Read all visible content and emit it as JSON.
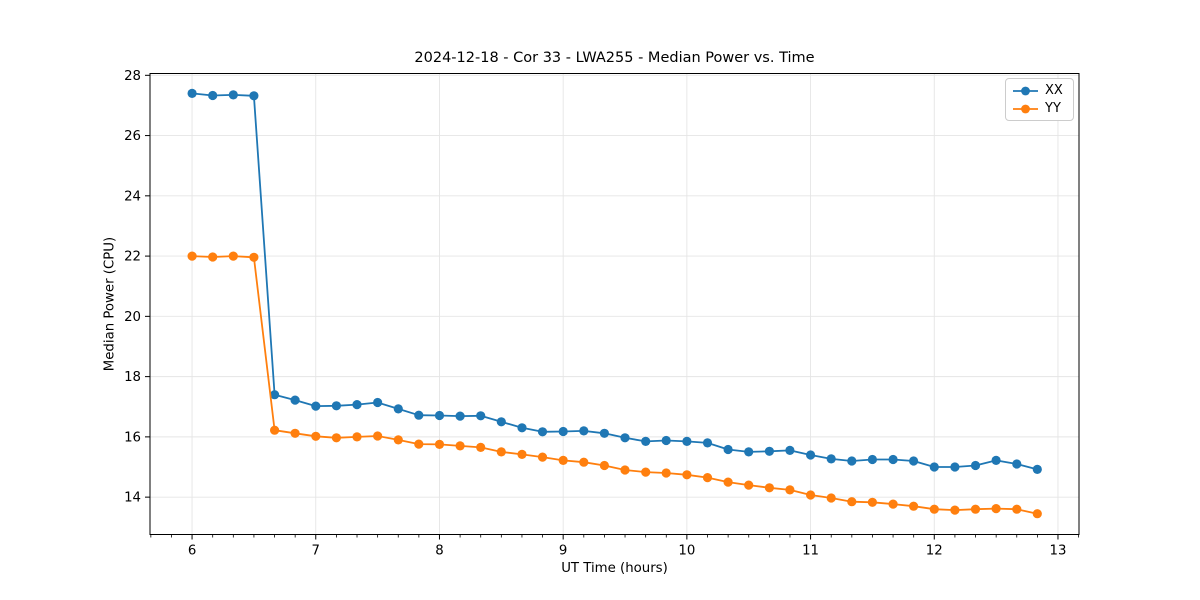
{
  "chart_data": {
    "type": "line",
    "title": "2024-12-18 - Cor 33 - LWA255 - Median Power vs. Time",
    "xlabel": "UT Time (hours)",
    "ylabel": "Median Power (CPU)",
    "xlim": [
      5.66,
      13.17
    ],
    "ylim": [
      12.76,
      28.06
    ],
    "xticks": [
      6,
      7,
      8,
      9,
      10,
      11,
      12,
      13
    ],
    "yticks": [
      14,
      16,
      18,
      20,
      22,
      24,
      26,
      28
    ],
    "x_minor_step": 0.16667,
    "grid": true,
    "grid_color": "#e5e5e5",
    "legend_position": "upper right",
    "background_color": "#ffffff",
    "x": [
      6,
      6.167,
      6.333,
      6.5,
      6.667,
      6.833,
      7,
      7.167,
      7.333,
      7.5,
      7.667,
      7.833,
      8,
      8.167,
      8.333,
      8.5,
      8.667,
      8.833,
      9,
      9.167,
      9.333,
      9.5,
      9.667,
      9.833,
      10,
      10.167,
      10.333,
      10.5,
      10.667,
      10.833,
      11,
      11.167,
      11.333,
      11.5,
      11.667,
      11.833,
      12,
      12.167,
      12.333,
      12.5,
      12.667,
      12.833
    ],
    "series": [
      {
        "name": "XX",
        "color": "#1f77b4",
        "values": [
          27.4,
          27.33,
          27.35,
          27.32,
          17.4,
          17.22,
          17.02,
          17.03,
          17.07,
          17.14,
          16.93,
          16.72,
          16.71,
          16.69,
          16.7,
          16.5,
          16.3,
          16.17,
          16.18,
          16.2,
          16.12,
          15.97,
          15.85,
          15.88,
          15.85,
          15.8,
          15.58,
          15.5,
          15.52,
          15.55,
          15.4,
          15.27,
          15.2,
          15.25,
          15.25,
          15.2,
          15.0,
          15.0,
          15.05,
          15.22,
          15.1,
          14.92
        ]
      },
      {
        "name": "YY",
        "color": "#ff7f0e",
        "values": [
          22.0,
          21.97,
          22.0,
          21.96,
          16.22,
          16.12,
          16.02,
          15.97,
          16.0,
          16.03,
          15.9,
          15.76,
          15.75,
          15.7,
          15.65,
          15.5,
          15.42,
          15.33,
          15.22,
          15.16,
          15.05,
          14.9,
          14.83,
          14.8,
          14.74,
          14.65,
          14.5,
          14.4,
          14.31,
          14.24,
          14.07,
          13.97,
          13.85,
          13.83,
          13.77,
          13.7,
          13.6,
          13.57,
          13.6,
          13.62,
          13.6,
          13.45
        ]
      }
    ]
  }
}
